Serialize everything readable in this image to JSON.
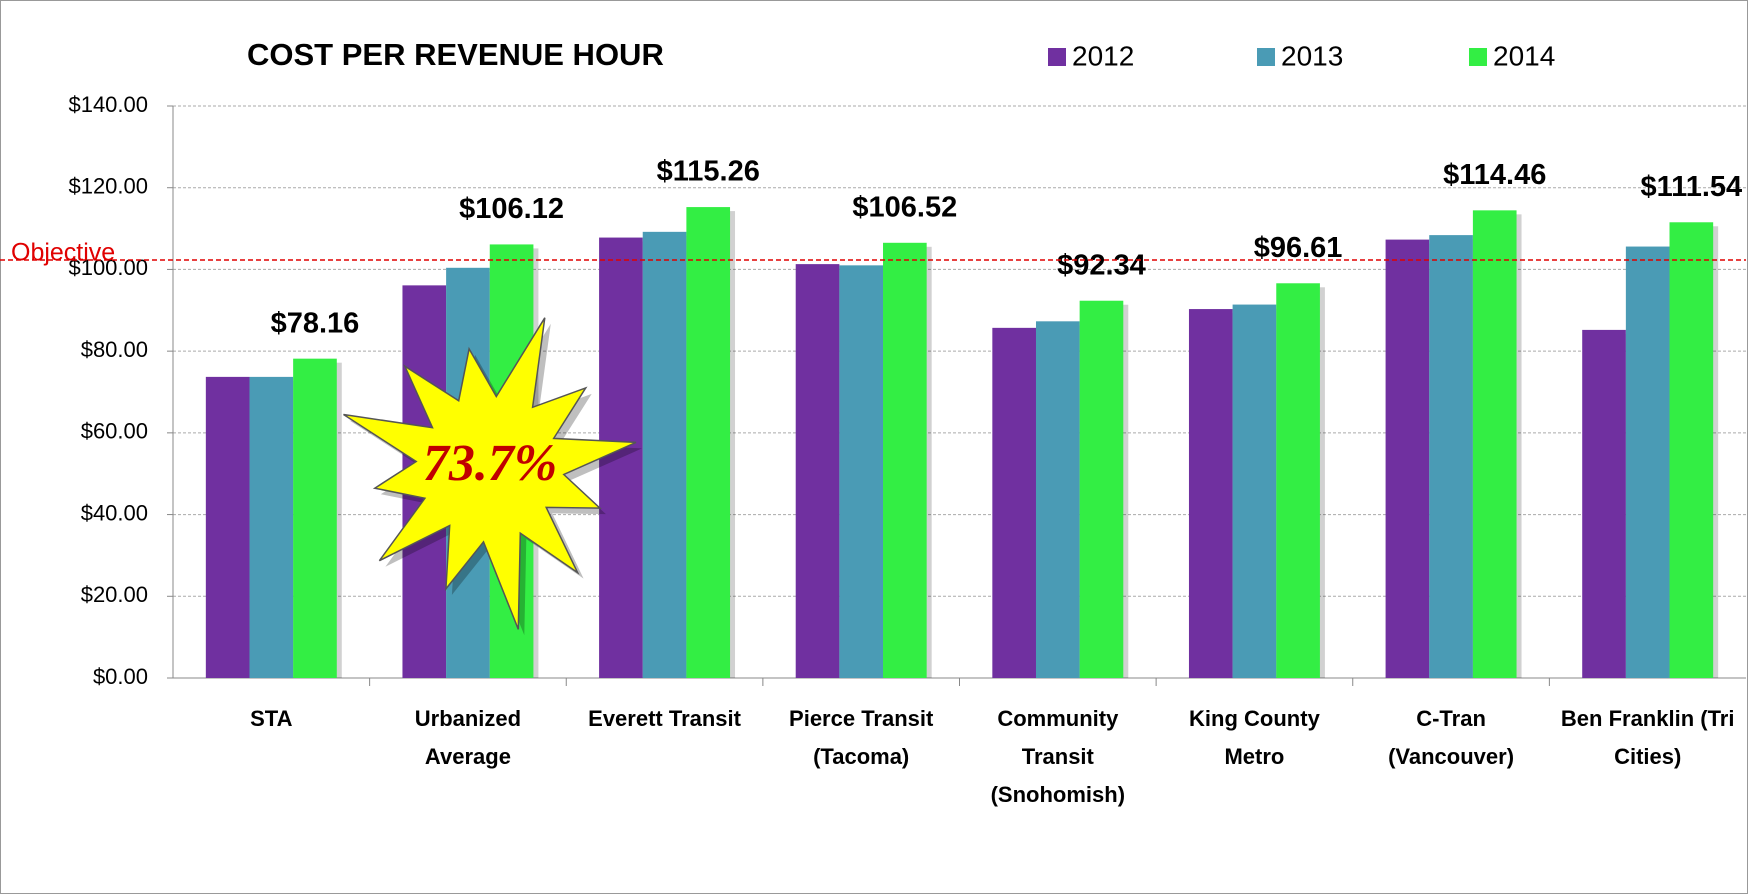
{
  "chart_data": {
    "type": "bar",
    "title": "COST PER REVENUE HOUR",
    "categories": [
      "STA",
      "Urbanized Average",
      "Everett Transit",
      "Pierce Transit (Tacoma)",
      "Community Transit (Snohomish)",
      "King County Metro",
      "C-Tran (Vancouver)",
      "Ben Franklin (Tri Cities)"
    ],
    "series": [
      {
        "name": "2012",
        "color": "#7030a0",
        "values": [
          73.7,
          96.1,
          107.8,
          101.3,
          85.7,
          90.3,
          107.3,
          85.2
        ]
      },
      {
        "name": "2013",
        "color": "#4a9bb5",
        "values": [
          73.7,
          100.4,
          109.2,
          101.0,
          87.3,
          91.4,
          108.4,
          105.6
        ]
      },
      {
        "name": "2014",
        "color": "#33ee44",
        "values": [
          78.16,
          106.12,
          115.26,
          106.52,
          92.34,
          96.61,
          114.46,
          111.54
        ],
        "value_labels": [
          "$78.16",
          "$106.12",
          "$115.26",
          "$106.52",
          "$92.34",
          "$96.61",
          "$114.46",
          "$111.54"
        ]
      }
    ],
    "ylim": [
      0,
      140
    ],
    "yticks": [
      {
        "value": 0,
        "label": "$0.00"
      },
      {
        "value": 20,
        "label": "$20.00"
      },
      {
        "value": 40,
        "label": "$40.00"
      },
      {
        "value": 60,
        "label": "$60.00"
      },
      {
        "value": 80,
        "label": "$80.00"
      },
      {
        "value": 100,
        "label": "$100.00"
      },
      {
        "value": 120,
        "label": "$120.00"
      },
      {
        "value": 140,
        "label": "$140.00"
      }
    ],
    "grid": true,
    "reference_line": {
      "label": "Objective",
      "value": 102.3,
      "color": "#e00000"
    },
    "annotation": "73.7%"
  }
}
